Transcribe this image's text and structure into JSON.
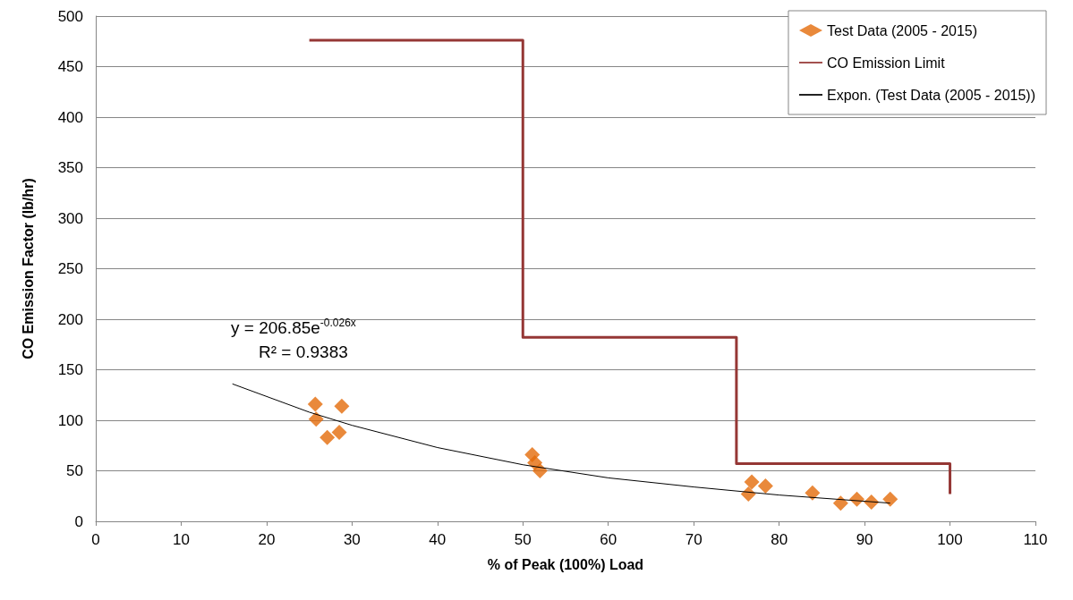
{
  "chart_data": {
    "type": "scatter",
    "xlabel": "% of Peak (100%) Load",
    "ylabel": "CO Emission Factor (lb/hr)",
    "xlim": [
      0,
      110
    ],
    "xticks": [
      0,
      10,
      20,
      30,
      40,
      50,
      60,
      70,
      80,
      90,
      100,
      110
    ],
    "ylim": [
      0,
      500
    ],
    "yticks": [
      0,
      50,
      100,
      150,
      200,
      250,
      300,
      350,
      400,
      450,
      500
    ],
    "grid": "y",
    "legend": "top right",
    "annotations": [
      "y = 206.85e$^{-0.026x}$",
      "R² = 0.9383"
    ],
    "series": [
      {
        "name": "Test Data (2005 - 2015)",
        "marker": "diamond",
        "color": "#e46c0a",
        "x": [
          25.7,
          25.8,
          27.1,
          28.5,
          28.8,
          51.1,
          51.4,
          52.0,
          76.4,
          76.8,
          78.4,
          83.9,
          87.2,
          89.1,
          90.8,
          93.0
        ],
        "values": [
          116,
          101,
          83,
          88,
          114,
          66,
          58,
          50,
          27,
          39,
          35,
          28,
          18,
          22,
          19,
          22
        ]
      },
      {
        "name": "CO Emission Limit",
        "type": "line",
        "marker": "none",
        "color": "#953735",
        "x": [
          25,
          50,
          50,
          75,
          75,
          100,
          100
        ],
        "values": [
          476,
          476,
          182,
          182,
          57,
          57,
          27
        ]
      },
      {
        "name": "Expon. (Test Data (2005 - 2015))",
        "type": "line",
        "marker": "none",
        "color": "#000000",
        "x": [
          16,
          25,
          30,
          40,
          50,
          60,
          70,
          80,
          93
        ],
        "values": [
          136,
          108,
          95,
          73,
          56,
          43,
          34,
          26,
          18
        ]
      }
    ]
  }
}
